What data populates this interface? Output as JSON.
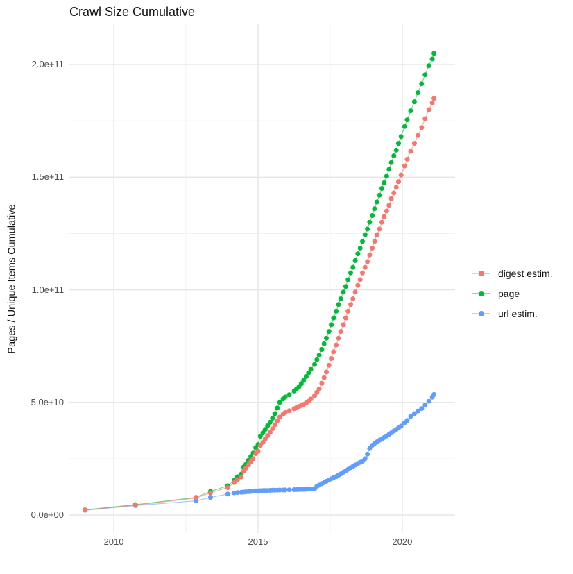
{
  "chart": {
    "title": "Crawl Size Cumulative",
    "y_axis_title": "Pages / Unique Items Cumulative",
    "legend": {
      "items": [
        {
          "id": "digest",
          "label": "digest estim.",
          "color": "#F8766D"
        },
        {
          "id": "page",
          "label": "page",
          "color": "#00BA38"
        },
        {
          "id": "url",
          "label": "url estim.",
          "color": "#619CFF"
        }
      ]
    }
  },
  "colors": {
    "background": "#FFFFFF",
    "grid_major": "#E4E4E4",
    "grid_minor": "#F0F0F0",
    "axis_text": "#4D4D4D",
    "text": "#141414",
    "digest": "#F8766D",
    "page": "#00BA38",
    "url": "#619CFF"
  },
  "chart_data": {
    "type": "line",
    "title": "Crawl Size Cumulative",
    "xlabel": "",
    "ylabel": "Pages / Unique Items Cumulative",
    "x_unit": "year (decimal, one point per crawl)",
    "y_unit": "items; stored values are billions (1e9)",
    "xlim": [
      2008.46,
      2021.83
    ],
    "ylim_e9": [
      -8,
      217.9
    ],
    "grid": true,
    "legend_position": "right",
    "x_ticks": {
      "major": [
        2010,
        2015,
        2020
      ],
      "minor": [
        2012.5,
        2017.5
      ],
      "labels": [
        "2010",
        "2015",
        "2020"
      ]
    },
    "y_ticks": {
      "major_e9": [
        0,
        50,
        100,
        150,
        200
      ],
      "minor_e9": [
        25,
        75,
        125,
        175
      ],
      "labels": [
        "0.0e+00",
        "5.0e+10",
        "1.0e+11",
        "1.5e+11",
        "2.0e+11"
      ]
    },
    "series": [
      {
        "name": "url estim.",
        "color": "#619CFF",
        "z": 1,
        "points": [
          [
            2009.0,
            2.1
          ],
          [
            2010.75,
            4.2
          ],
          [
            2012.85,
            6.3
          ],
          [
            2013.35,
            7.8
          ],
          [
            2013.95,
            9.3
          ],
          [
            2014.17,
            9.8
          ],
          [
            2014.29,
            10.0
          ],
          [
            2014.42,
            10.1
          ],
          [
            2014.5,
            10.2
          ],
          [
            2014.58,
            10.3
          ],
          [
            2014.67,
            10.4
          ],
          [
            2014.75,
            10.5
          ],
          [
            2014.83,
            10.6
          ],
          [
            2014.92,
            10.7
          ],
          [
            2015.0,
            10.75
          ],
          [
            2015.08,
            10.8
          ],
          [
            2015.17,
            10.85
          ],
          [
            2015.25,
            10.9
          ],
          [
            2015.33,
            10.9
          ],
          [
            2015.42,
            10.95
          ],
          [
            2015.5,
            11.0
          ],
          [
            2015.58,
            11.0
          ],
          [
            2015.67,
            11.05
          ],
          [
            2015.75,
            11.1
          ],
          [
            2015.87,
            11.1
          ],
          [
            2015.94,
            11.15
          ],
          [
            2016.08,
            11.2
          ],
          [
            2016.25,
            11.25
          ],
          [
            2016.33,
            11.3
          ],
          [
            2016.42,
            11.35
          ],
          [
            2016.5,
            11.4
          ],
          [
            2016.58,
            11.4
          ],
          [
            2016.67,
            11.45
          ],
          [
            2016.75,
            11.5
          ],
          [
            2016.83,
            11.55
          ],
          [
            2016.96,
            11.6
          ],
          [
            2017.04,
            12.8
          ],
          [
            2017.12,
            13.3
          ],
          [
            2017.21,
            13.9
          ],
          [
            2017.29,
            14.4
          ],
          [
            2017.37,
            15.0
          ],
          [
            2017.46,
            15.6
          ],
          [
            2017.54,
            16.1
          ],
          [
            2017.62,
            16.6
          ],
          [
            2017.71,
            17.1
          ],
          [
            2017.79,
            17.7
          ],
          [
            2017.87,
            18.3
          ],
          [
            2017.96,
            19.0
          ],
          [
            2018.04,
            19.6
          ],
          [
            2018.12,
            20.3
          ],
          [
            2018.21,
            21.0
          ],
          [
            2018.29,
            21.6
          ],
          [
            2018.37,
            22.2
          ],
          [
            2018.46,
            22.9
          ],
          [
            2018.54,
            23.4
          ],
          [
            2018.62,
            23.9
          ],
          [
            2018.71,
            25.0
          ],
          [
            2018.79,
            27.0
          ],
          [
            2018.87,
            29.5
          ],
          [
            2018.96,
            31.0
          ],
          [
            2019.04,
            31.8
          ],
          [
            2019.12,
            32.5
          ],
          [
            2019.21,
            33.2
          ],
          [
            2019.29,
            33.8
          ],
          [
            2019.37,
            34.4
          ],
          [
            2019.46,
            35.1
          ],
          [
            2019.54,
            35.8
          ],
          [
            2019.62,
            36.5
          ],
          [
            2019.71,
            37.3
          ],
          [
            2019.79,
            38.0
          ],
          [
            2019.87,
            38.7
          ],
          [
            2019.96,
            39.5
          ],
          [
            2020.08,
            41.0
          ],
          [
            2020.17,
            42.0
          ],
          [
            2020.29,
            43.8
          ],
          [
            2020.42,
            45.0
          ],
          [
            2020.54,
            46.2
          ],
          [
            2020.67,
            47.3
          ],
          [
            2020.79,
            48.8
          ],
          [
            2020.92,
            50.5
          ],
          [
            2021.04,
            52.3
          ],
          [
            2021.1,
            53.5
          ]
        ]
      },
      {
        "name": "page",
        "color": "#00BA38",
        "z": 2,
        "points": [
          [
            2009.0,
            2.3
          ],
          [
            2010.75,
            4.6
          ],
          [
            2012.85,
            7.8
          ],
          [
            2013.35,
            10.5
          ],
          [
            2013.95,
            13.0
          ],
          [
            2014.17,
            15.4
          ],
          [
            2014.29,
            17.0
          ],
          [
            2014.42,
            18.2
          ],
          [
            2014.5,
            21.3
          ],
          [
            2014.58,
            22.5
          ],
          [
            2014.67,
            24.3
          ],
          [
            2014.75,
            26.0
          ],
          [
            2014.83,
            27.5
          ],
          [
            2014.92,
            29.9
          ],
          [
            2015.0,
            31.3
          ],
          [
            2015.08,
            35.0
          ],
          [
            2015.17,
            36.5
          ],
          [
            2015.25,
            38.0
          ],
          [
            2015.33,
            39.6
          ],
          [
            2015.42,
            41.2
          ],
          [
            2015.5,
            43.0
          ],
          [
            2015.58,
            45.0
          ],
          [
            2015.67,
            47.5
          ],
          [
            2015.75,
            50.0
          ],
          [
            2015.87,
            51.5
          ],
          [
            2015.94,
            52.4
          ],
          [
            2016.08,
            53.4
          ],
          [
            2016.25,
            55.1
          ],
          [
            2016.33,
            55.9
          ],
          [
            2016.42,
            57.0
          ],
          [
            2016.5,
            58.3
          ],
          [
            2016.58,
            59.8
          ],
          [
            2016.67,
            61.5
          ],
          [
            2016.75,
            63.1
          ],
          [
            2016.83,
            64.7
          ],
          [
            2016.96,
            66.9
          ],
          [
            2017.04,
            69.0
          ],
          [
            2017.12,
            71.0
          ],
          [
            2017.21,
            73.5
          ],
          [
            2017.29,
            76.0
          ],
          [
            2017.37,
            78.5
          ],
          [
            2017.46,
            81.5
          ],
          [
            2017.54,
            84.5
          ],
          [
            2017.62,
            87.5
          ],
          [
            2017.71,
            90.5
          ],
          [
            2017.79,
            93.5
          ],
          [
            2017.87,
            96.0
          ],
          [
            2017.96,
            99.0
          ],
          [
            2018.04,
            101.5
          ],
          [
            2018.12,
            104.5
          ],
          [
            2018.21,
            107.5
          ],
          [
            2018.29,
            110.0
          ],
          [
            2018.37,
            113.0
          ],
          [
            2018.46,
            116.0
          ],
          [
            2018.54,
            118.5
          ],
          [
            2018.62,
            121.5
          ],
          [
            2018.71,
            124.5
          ],
          [
            2018.79,
            127.0
          ],
          [
            2018.87,
            130.0
          ],
          [
            2018.96,
            133.0
          ],
          [
            2019.04,
            136.0
          ],
          [
            2019.12,
            139.0
          ],
          [
            2019.21,
            142.0
          ],
          [
            2019.29,
            145.0
          ],
          [
            2019.37,
            147.5
          ],
          [
            2019.46,
            150.5
          ],
          [
            2019.54,
            153.5
          ],
          [
            2019.62,
            156.5
          ],
          [
            2019.71,
            159.5
          ],
          [
            2019.79,
            162.0
          ],
          [
            2019.87,
            165.0
          ],
          [
            2019.96,
            168.0
          ],
          [
            2020.08,
            172.5
          ],
          [
            2020.17,
            175.5
          ],
          [
            2020.29,
            179.5
          ],
          [
            2020.42,
            183.5
          ],
          [
            2020.54,
            187.5
          ],
          [
            2020.67,
            191.5
          ],
          [
            2020.79,
            195.5
          ],
          [
            2020.92,
            199.5
          ],
          [
            2021.04,
            202.5
          ],
          [
            2021.1,
            205.0
          ]
        ]
      },
      {
        "name": "digest estim.",
        "color": "#F8766D",
        "z": 3,
        "points": [
          [
            2009.0,
            2.2
          ],
          [
            2010.75,
            4.4
          ],
          [
            2012.85,
            7.5
          ],
          [
            2013.35,
            9.8
          ],
          [
            2013.95,
            12.2
          ],
          [
            2014.17,
            14.4
          ],
          [
            2014.29,
            15.7
          ],
          [
            2014.42,
            16.9
          ],
          [
            2014.5,
            19.5
          ],
          [
            2014.58,
            20.8
          ],
          [
            2014.67,
            22.3
          ],
          [
            2014.75,
            23.7
          ],
          [
            2014.83,
            25.0
          ],
          [
            2014.92,
            27.3
          ],
          [
            2015.0,
            28.4
          ],
          [
            2015.08,
            31.0
          ],
          [
            2015.17,
            32.3
          ],
          [
            2015.25,
            33.8
          ],
          [
            2015.33,
            35.2
          ],
          [
            2015.42,
            36.7
          ],
          [
            2015.5,
            38.3
          ],
          [
            2015.58,
            40.0
          ],
          [
            2015.67,
            41.8
          ],
          [
            2015.75,
            43.5
          ],
          [
            2015.87,
            44.8
          ],
          [
            2015.94,
            45.5
          ],
          [
            2016.08,
            46.3
          ],
          [
            2016.25,
            47.2
          ],
          [
            2016.33,
            47.7
          ],
          [
            2016.42,
            48.2
          ],
          [
            2016.5,
            48.6
          ],
          [
            2016.58,
            49.1
          ],
          [
            2016.67,
            49.8
          ],
          [
            2016.75,
            50.5
          ],
          [
            2016.83,
            51.5
          ],
          [
            2016.96,
            53.0
          ],
          [
            2017.04,
            54.5
          ],
          [
            2017.12,
            56.0
          ],
          [
            2017.21,
            58.5
          ],
          [
            2017.29,
            61.0
          ],
          [
            2017.37,
            63.5
          ],
          [
            2017.46,
            66.5
          ],
          [
            2017.54,
            69.5
          ],
          [
            2017.62,
            72.5
          ],
          [
            2017.71,
            75.5
          ],
          [
            2017.79,
            78.5
          ],
          [
            2017.87,
            81.5
          ],
          [
            2017.96,
            84.5
          ],
          [
            2018.04,
            87.5
          ],
          [
            2018.12,
            90.5
          ],
          [
            2018.21,
            93.5
          ],
          [
            2018.29,
            96.0
          ],
          [
            2018.37,
            99.0
          ],
          [
            2018.46,
            102.0
          ],
          [
            2018.54,
            104.5
          ],
          [
            2018.62,
            107.5
          ],
          [
            2018.71,
            110.0
          ],
          [
            2018.79,
            112.5
          ],
          [
            2018.87,
            115.5
          ],
          [
            2018.96,
            118.5
          ],
          [
            2019.04,
            121.5
          ],
          [
            2019.12,
            124.5
          ],
          [
            2019.21,
            127.0
          ],
          [
            2019.29,
            130.0
          ],
          [
            2019.37,
            132.5
          ],
          [
            2019.46,
            135.0
          ],
          [
            2019.54,
            137.5
          ],
          [
            2019.62,
            140.5
          ],
          [
            2019.71,
            143.0
          ],
          [
            2019.79,
            145.5
          ],
          [
            2019.87,
            148.0
          ],
          [
            2019.96,
            151.0
          ],
          [
            2020.08,
            155.0
          ],
          [
            2020.17,
            158.0
          ],
          [
            2020.29,
            161.5
          ],
          [
            2020.42,
            165.0
          ],
          [
            2020.54,
            168.5
          ],
          [
            2020.67,
            172.0
          ],
          [
            2020.79,
            176.0
          ],
          [
            2020.92,
            180.0
          ],
          [
            2021.04,
            183.0
          ],
          [
            2021.1,
            185.0
          ]
        ]
      }
    ]
  }
}
